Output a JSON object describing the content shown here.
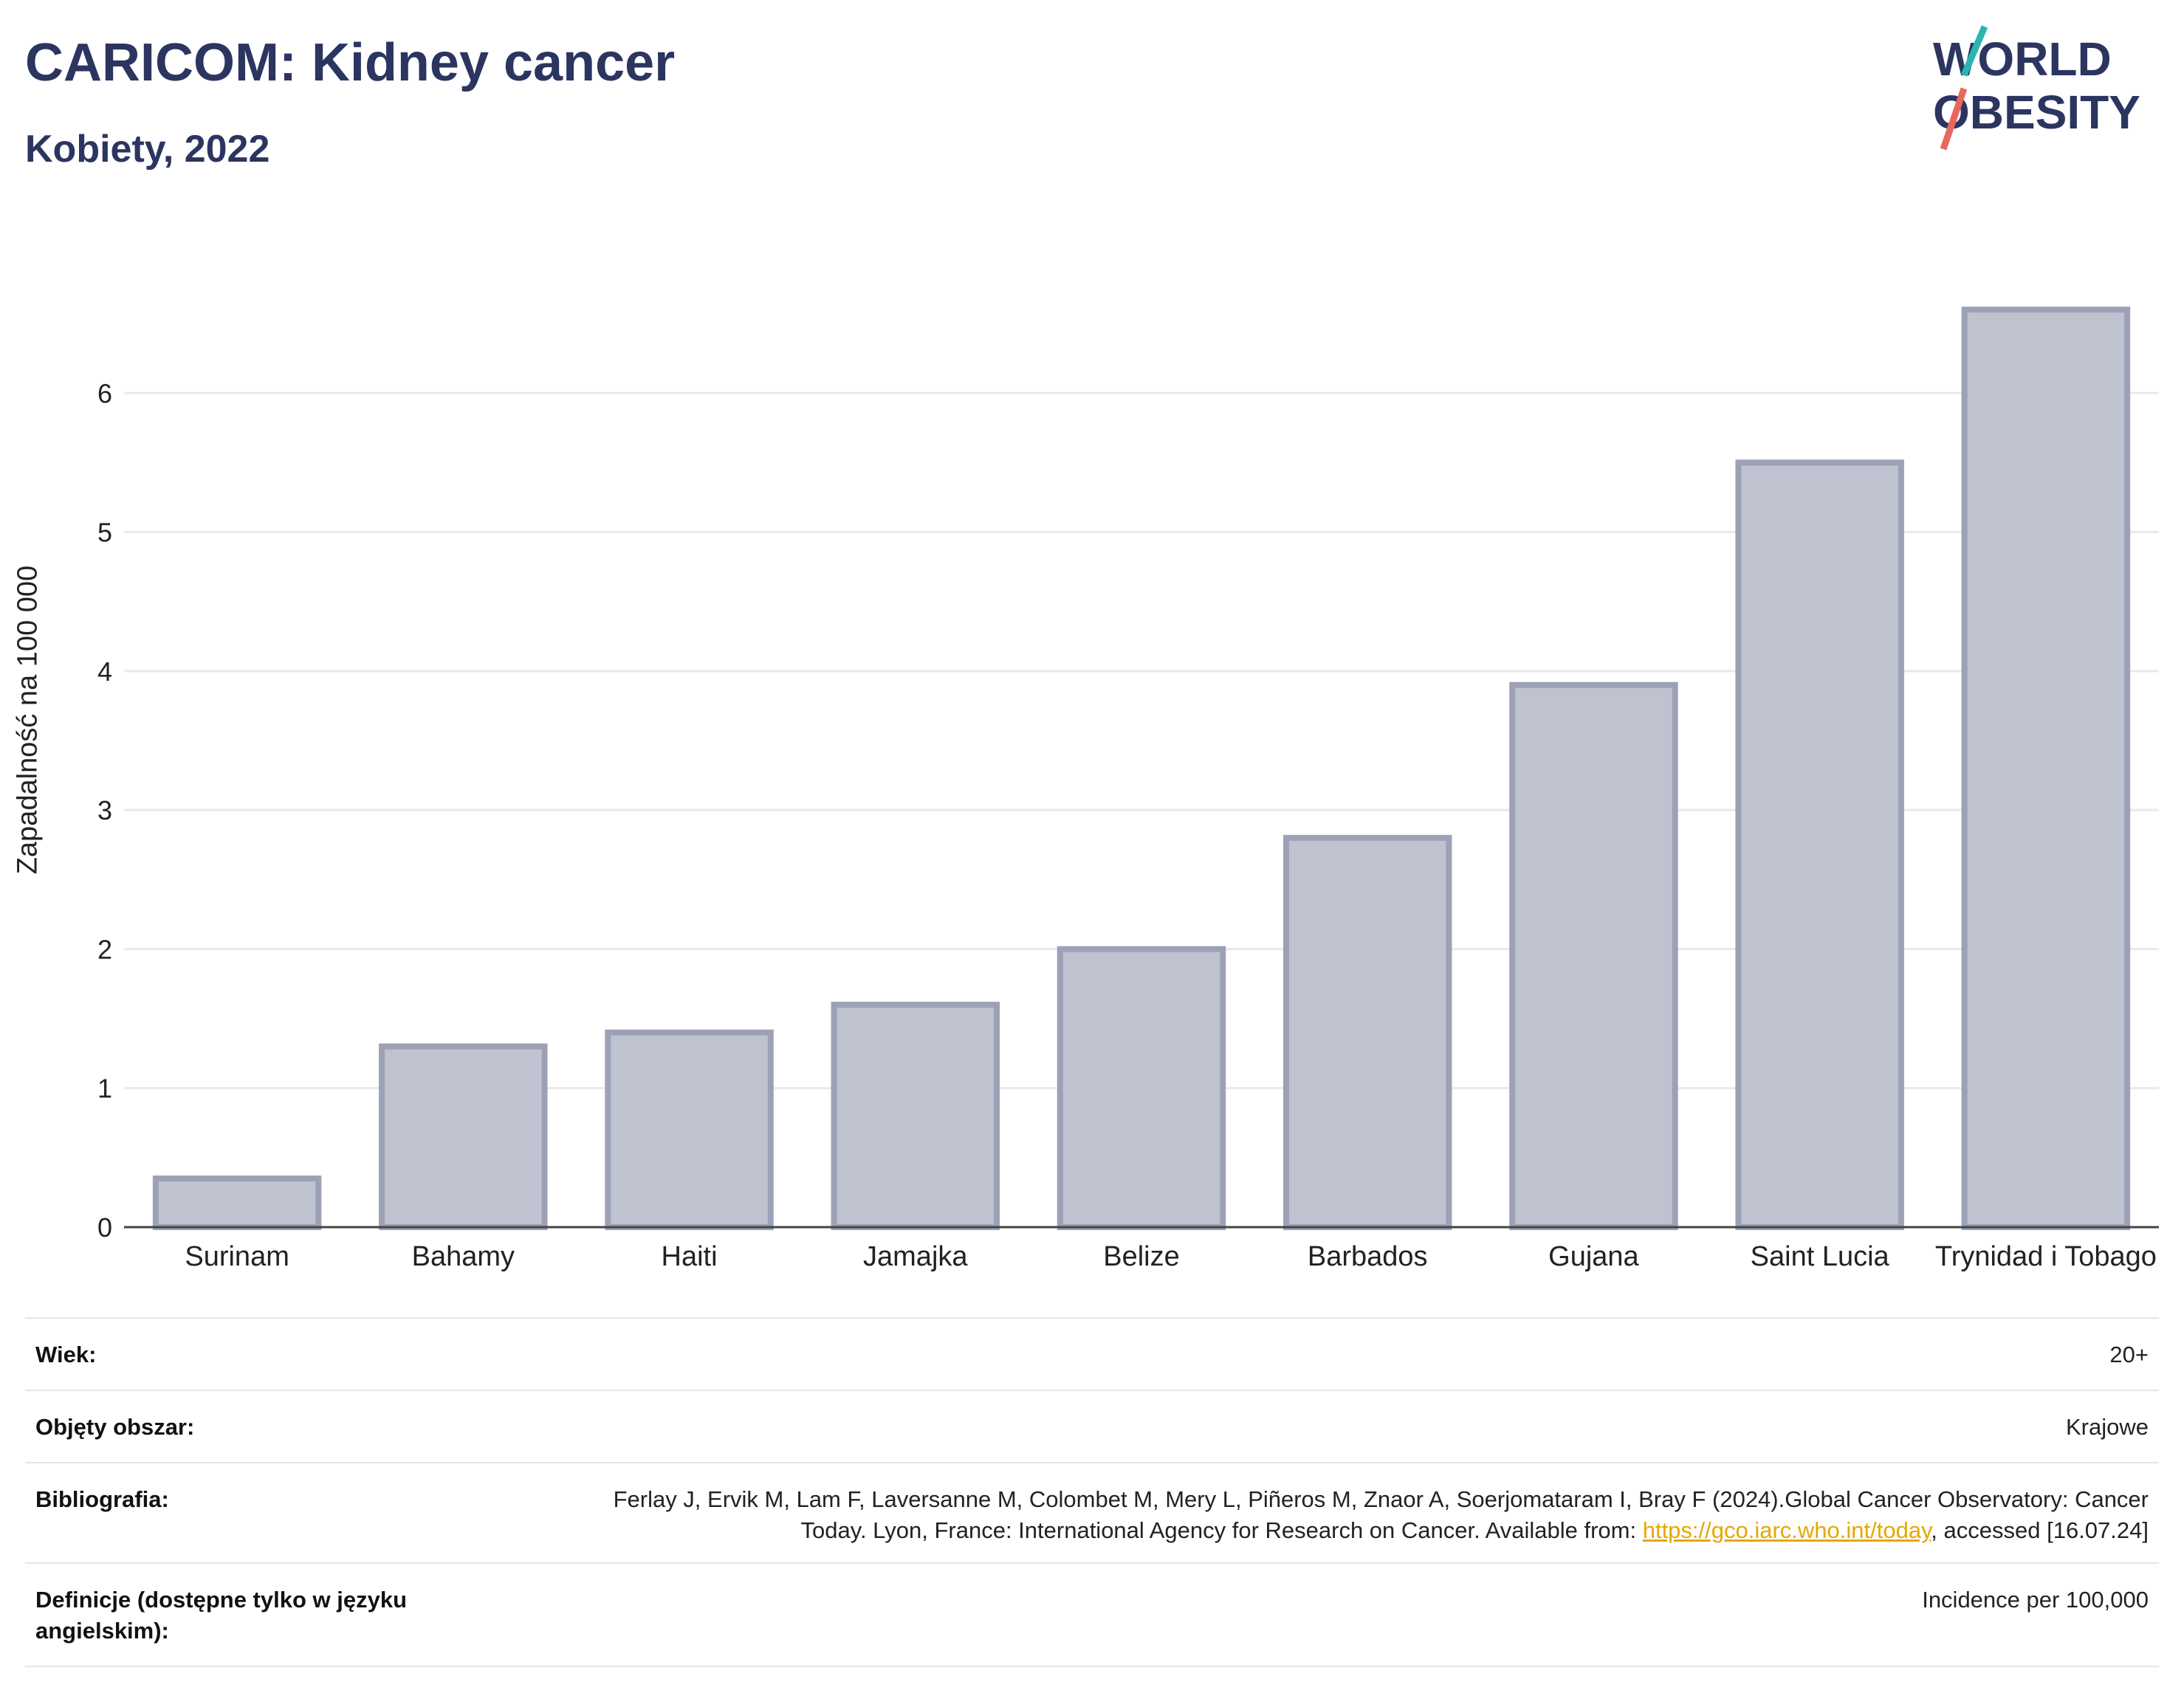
{
  "header": {
    "title": "CARICOM: Kidney cancer",
    "subtitle": "Kobiety, 2022"
  },
  "logo": {
    "line1": "WORLD",
    "line2": "OBESITY",
    "text_color": "#2b3560",
    "accent_teal": "#2bb5b0",
    "accent_red": "#e8685c"
  },
  "chart_data": {
    "type": "bar",
    "categories": [
      "Surinam",
      "Bahamy",
      "Haiti",
      "Jamajka",
      "Belize",
      "Barbados",
      "Gujana",
      "Saint Lucia",
      "Trynidad i Tobago"
    ],
    "values": [
      0.35,
      1.3,
      1.4,
      1.6,
      2.0,
      2.8,
      3.9,
      5.5,
      6.6
    ],
    "ylabel": "Zapadalność na 100 000",
    "xlabel": "",
    "ylim": [
      0,
      7
    ],
    "yticks": [
      0,
      1,
      2,
      3,
      4,
      5,
      6
    ],
    "grid": true,
    "bar_fill": "#bfc2cf",
    "bar_stroke": "#9da1b6"
  },
  "meta": {
    "age_label": "Wiek:",
    "age_value": "20+",
    "area_label": "Objęty obszar:",
    "area_value": "Krajowe",
    "biblio_label": "Bibliografia:",
    "biblio_text_1": "Ferlay J, Ervik M, Lam F, Laversanne M, Colombet M, Mery L, Piñeros M, Znaor A, Soerjomataram I, Bray F (2024).Global Cancer Observatory: Cancer Today. Lyon, France: International Agency for Research on Cancer. Available from: ",
    "biblio_link": "https://gco.iarc.who.int/today",
    "biblio_text_2": ", accessed [16.07.24]",
    "defs_label": "Definicje (dostępne tylko w języku angielskim):",
    "defs_value": "Incidence per 100,000"
  }
}
